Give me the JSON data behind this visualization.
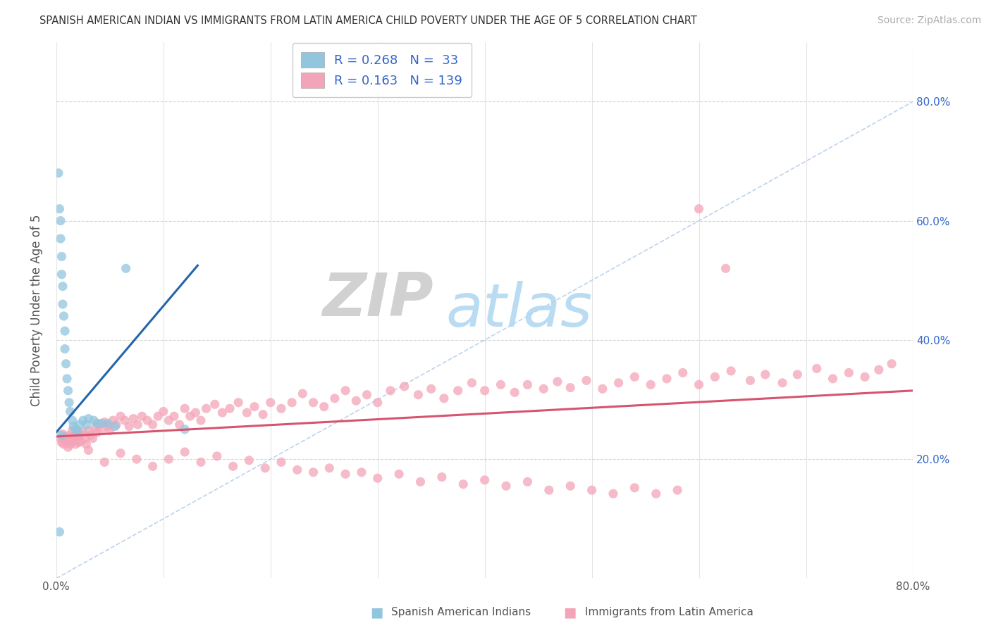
{
  "title": "SPANISH AMERICAN INDIAN VS IMMIGRANTS FROM LATIN AMERICA CHILD POVERTY UNDER THE AGE OF 5 CORRELATION CHART",
  "source": "Source: ZipAtlas.com",
  "ylabel": "Child Poverty Under the Age of 5",
  "color_blue": "#92c5de",
  "color_pink": "#f4a4b8",
  "color_blue_line": "#2166ac",
  "color_pink_line": "#d6546e",
  "watermark_zip": "ZIP",
  "watermark_atlas": "atlas",
  "xlim": [
    0.0,
    0.8
  ],
  "ylim": [
    0.0,
    0.9
  ],
  "blue_line_x": [
    0.0,
    0.132
  ],
  "blue_line_y": [
    0.245,
    0.525
  ],
  "pink_line_x": [
    0.0,
    0.8
  ],
  "pink_line_y": [
    0.238,
    0.315
  ],
  "diag_line_x": [
    0.0,
    0.8
  ],
  "diag_line_y": [
    0.0,
    0.8
  ],
  "blue_x": [
    0.002,
    0.003,
    0.004,
    0.004,
    0.005,
    0.005,
    0.006,
    0.006,
    0.007,
    0.008,
    0.008,
    0.009,
    0.01,
    0.011,
    0.012,
    0.013,
    0.015,
    0.016,
    0.018,
    0.02,
    0.022,
    0.025,
    0.028,
    0.03,
    0.035,
    0.038,
    0.042,
    0.048,
    0.055,
    0.065,
    0.12,
    0.005,
    0.003
  ],
  "blue_y": [
    0.68,
    0.62,
    0.6,
    0.57,
    0.54,
    0.51,
    0.49,
    0.46,
    0.44,
    0.415,
    0.385,
    0.36,
    0.335,
    0.315,
    0.295,
    0.28,
    0.265,
    0.255,
    0.25,
    0.248,
    0.258,
    0.265,
    0.258,
    0.268,
    0.265,
    0.26,
    0.26,
    0.26,
    0.255,
    0.52,
    0.25,
    0.24,
    0.078
  ],
  "pink_x": [
    0.004,
    0.005,
    0.006,
    0.007,
    0.008,
    0.009,
    0.01,
    0.011,
    0.012,
    0.013,
    0.014,
    0.015,
    0.016,
    0.017,
    0.018,
    0.019,
    0.02,
    0.021,
    0.022,
    0.023,
    0.025,
    0.027,
    0.028,
    0.03,
    0.032,
    0.034,
    0.036,
    0.038,
    0.04,
    0.042,
    0.045,
    0.048,
    0.05,
    0.053,
    0.056,
    0.06,
    0.064,
    0.068,
    0.072,
    0.076,
    0.08,
    0.085,
    0.09,
    0.095,
    0.1,
    0.105,
    0.11,
    0.115,
    0.12,
    0.125,
    0.13,
    0.135,
    0.14,
    0.148,
    0.155,
    0.162,
    0.17,
    0.178,
    0.185,
    0.193,
    0.2,
    0.21,
    0.22,
    0.23,
    0.24,
    0.25,
    0.26,
    0.27,
    0.28,
    0.29,
    0.3,
    0.312,
    0.325,
    0.338,
    0.35,
    0.362,
    0.375,
    0.388,
    0.4,
    0.415,
    0.428,
    0.44,
    0.455,
    0.468,
    0.48,
    0.495,
    0.51,
    0.525,
    0.54,
    0.555,
    0.57,
    0.585,
    0.6,
    0.615,
    0.63,
    0.648,
    0.662,
    0.678,
    0.692,
    0.71,
    0.725,
    0.74,
    0.755,
    0.768,
    0.78,
    0.03,
    0.045,
    0.06,
    0.075,
    0.09,
    0.105,
    0.12,
    0.135,
    0.15,
    0.165,
    0.18,
    0.195,
    0.21,
    0.225,
    0.24,
    0.255,
    0.27,
    0.285,
    0.3,
    0.32,
    0.34,
    0.36,
    0.38,
    0.4,
    0.42,
    0.44,
    0.46,
    0.48,
    0.5,
    0.52,
    0.54,
    0.56,
    0.58,
    0.6,
    0.625
  ],
  "pink_y": [
    0.235,
    0.228,
    0.242,
    0.225,
    0.238,
    0.23,
    0.232,
    0.22,
    0.24,
    0.225,
    0.235,
    0.248,
    0.23,
    0.238,
    0.225,
    0.242,
    0.235,
    0.228,
    0.242,
    0.23,
    0.245,
    0.235,
    0.225,
    0.248,
    0.24,
    0.235,
    0.252,
    0.245,
    0.258,
    0.248,
    0.262,
    0.255,
    0.248,
    0.265,
    0.258,
    0.272,
    0.265,
    0.255,
    0.268,
    0.258,
    0.272,
    0.265,
    0.258,
    0.272,
    0.28,
    0.265,
    0.272,
    0.258,
    0.285,
    0.272,
    0.278,
    0.265,
    0.285,
    0.292,
    0.278,
    0.285,
    0.295,
    0.278,
    0.288,
    0.275,
    0.295,
    0.285,
    0.295,
    0.31,
    0.295,
    0.288,
    0.302,
    0.315,
    0.298,
    0.308,
    0.295,
    0.315,
    0.322,
    0.308,
    0.318,
    0.302,
    0.315,
    0.328,
    0.315,
    0.325,
    0.312,
    0.325,
    0.318,
    0.33,
    0.32,
    0.332,
    0.318,
    0.328,
    0.338,
    0.325,
    0.335,
    0.345,
    0.325,
    0.338,
    0.348,
    0.332,
    0.342,
    0.328,
    0.342,
    0.352,
    0.335,
    0.345,
    0.338,
    0.35,
    0.36,
    0.215,
    0.195,
    0.21,
    0.2,
    0.188,
    0.2,
    0.212,
    0.195,
    0.205,
    0.188,
    0.198,
    0.185,
    0.195,
    0.182,
    0.178,
    0.185,
    0.175,
    0.178,
    0.168,
    0.175,
    0.162,
    0.17,
    0.158,
    0.165,
    0.155,
    0.162,
    0.148,
    0.155,
    0.148,
    0.142,
    0.152,
    0.142,
    0.148,
    0.62,
    0.52
  ]
}
